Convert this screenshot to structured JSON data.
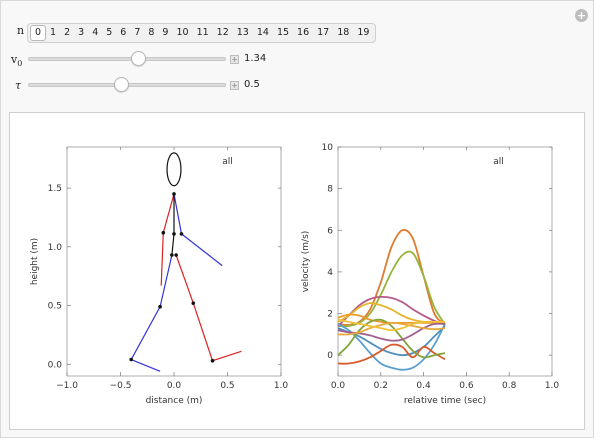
{
  "controls": {
    "n": {
      "label": "n",
      "options": [
        "0",
        "1",
        "2",
        "3",
        "4",
        "5",
        "6",
        "7",
        "8",
        "9",
        "10",
        "11",
        "12",
        "13",
        "14",
        "15",
        "16",
        "17",
        "18",
        "19"
      ],
      "selected": "0"
    },
    "v0": {
      "label": "v",
      "subscript": "0",
      "value": "1.34",
      "fraction": 0.56
    },
    "tau": {
      "label": "τ",
      "value": "0.5",
      "fraction": 0.47
    }
  },
  "chart_data": [
    {
      "type": "line",
      "annotation": "all",
      "xlabel": "distance (m)",
      "ylabel": "height (m)",
      "xlim": [
        -1.0,
        1.0
      ],
      "ylim": [
        -0.1,
        1.85
      ],
      "xticks": [
        "−1.0",
        "−0.5",
        "0.0",
        "0.5",
        "1.0"
      ],
      "yticks": [
        "0.0",
        "0.5",
        "1.0",
        "1.5"
      ],
      "head": {
        "cx": 0.0,
        "cy": 1.66,
        "rx": 0.065,
        "ry": 0.14
      },
      "segments": [
        {
          "name": "right-leg-color",
          "color": "#3333dd",
          "points": [
            [
              0.0,
              1.45
            ],
            [
              0.07,
              1.11
            ],
            [
              0.45,
              0.84
            ]
          ]
        },
        {
          "name": "left-arm-color",
          "color": "#dd2222",
          "points": [
            [
              0.0,
              1.45
            ],
            [
              -0.1,
              1.12
            ],
            [
              -0.12,
              0.67
            ]
          ]
        },
        {
          "name": "torso",
          "color": "#111111",
          "points": [
            [
              0.0,
              1.45
            ],
            [
              0.0,
              1.11
            ],
            [
              -0.02,
              0.93
            ]
          ]
        },
        {
          "name": "left-leg",
          "color": "#dd2222",
          "points": [
            [
              0.02,
              0.93
            ],
            [
              0.18,
              0.52
            ],
            [
              0.36,
              0.03
            ],
            [
              0.63,
              0.11
            ]
          ]
        },
        {
          "name": "right-leg",
          "color": "#3333dd",
          "points": [
            [
              -0.02,
              0.93
            ],
            [
              -0.13,
              0.49
            ],
            [
              -0.4,
              0.04
            ],
            [
              -0.13,
              -0.06
            ]
          ]
        }
      ],
      "joints": [
        [
          0.0,
          1.45
        ],
        [
          0.07,
          1.11
        ],
        [
          -0.1,
          1.12
        ],
        [
          0.0,
          1.11
        ],
        [
          -0.02,
          0.93
        ],
        [
          0.02,
          0.93
        ],
        [
          0.18,
          0.52
        ],
        [
          0.36,
          0.03
        ],
        [
          -0.13,
          0.49
        ],
        [
          -0.4,
          0.04
        ]
      ]
    },
    {
      "type": "line",
      "annotation": "all",
      "xlabel": "relative time (sec)",
      "ylabel": "velocity (m/s)",
      "xlim": [
        0.0,
        1.0
      ],
      "ylim": [
        -1.0,
        10.0
      ],
      "xticks": [
        "0.0",
        "0.2",
        "0.4",
        "0.6",
        "0.8",
        "1.0"
      ],
      "yticks": [
        "0",
        "2",
        "4",
        "6",
        "8",
        "10"
      ],
      "x": [
        0.0,
        0.05,
        0.1,
        0.15,
        0.2,
        0.25,
        0.3,
        0.35,
        0.4,
        0.45,
        0.5
      ],
      "series": [
        {
          "color": "#e07a2e",
          "values": [
            1.5,
            1.45,
            1.6,
            2.2,
            3.5,
            5.2,
            6.0,
            5.6,
            3.8,
            2.0,
            1.5
          ]
        },
        {
          "color": "#95b53c",
          "values": [
            1.4,
            1.4,
            1.55,
            2.0,
            2.9,
            4.0,
            4.8,
            4.9,
            3.8,
            2.3,
            1.5
          ]
        },
        {
          "color": "#b55a8a",
          "values": [
            1.4,
            1.9,
            2.4,
            2.7,
            2.8,
            2.75,
            2.55,
            2.2,
            1.9,
            1.65,
            1.5
          ]
        },
        {
          "color": "#e4b52c",
          "values": [
            1.6,
            1.9,
            2.3,
            2.5,
            2.4,
            2.2,
            1.9,
            1.7,
            1.6,
            1.55,
            1.5
          ]
        },
        {
          "color": "#ec9a2a",
          "values": [
            1.8,
            1.95,
            1.9,
            1.7,
            1.6,
            1.55,
            1.55,
            1.55,
            1.55,
            1.55,
            1.5
          ]
        },
        {
          "color": "#5a9fcf",
          "values": [
            1.5,
            1.2,
            0.7,
            0.1,
            -0.4,
            -0.6,
            -0.7,
            -0.6,
            -0.2,
            0.5,
            1.5
          ]
        },
        {
          "color": "#4e8fbf",
          "values": [
            1.3,
            1.1,
            0.9,
            0.6,
            0.3,
            0.1,
            0.0,
            0.1,
            0.4,
            0.9,
            1.4
          ]
        },
        {
          "color": "#d95b2b",
          "values": [
            -0.4,
            -0.4,
            -0.3,
            -0.1,
            0.2,
            0.5,
            0.4,
            -0.1,
            0.4,
            0.1,
            -0.2
          ]
        },
        {
          "color": "#7fa33a",
          "values": [
            0.0,
            0.5,
            1.2,
            1.6,
            1.7,
            1.4,
            0.8,
            0.2,
            -0.1,
            0.0,
            0.1
          ]
        },
        {
          "color": "#a0608e",
          "values": [
            1.2,
            1.1,
            1.05,
            0.95,
            0.8,
            0.7,
            0.75,
            1.0,
            1.3,
            1.5,
            1.5
          ]
        },
        {
          "color": "#e8a83c",
          "values": [
            1.0,
            1.0,
            1.1,
            1.3,
            1.45,
            1.55,
            1.5,
            1.4,
            1.3,
            1.25,
            1.3
          ]
        },
        {
          "color": "#f0c23a",
          "values": [
            1.7,
            1.6,
            1.5,
            1.4,
            1.3,
            1.2,
            1.3,
            1.5,
            1.6,
            1.6,
            1.6
          ]
        }
      ]
    }
  ]
}
